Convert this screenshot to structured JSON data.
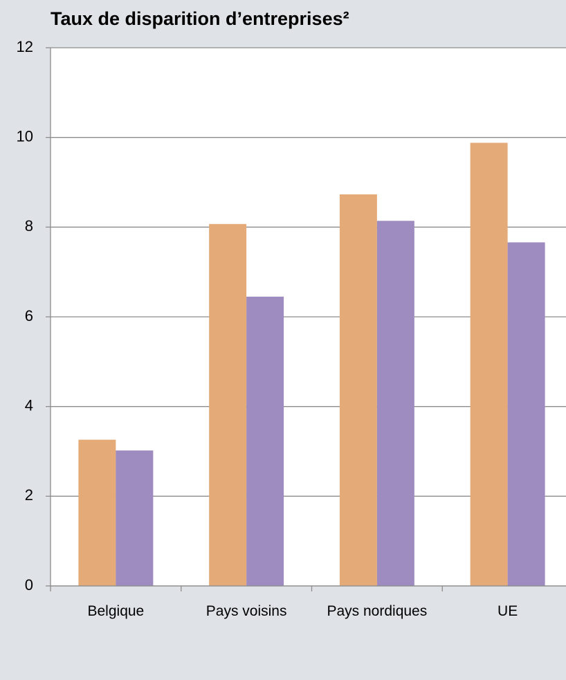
{
  "chart_data": {
    "type": "bar",
    "title": "Taux de disparition d’entreprises²",
    "categories": [
      "Belgique",
      "Pays voisins",
      "Pays nordiques",
      "UE"
    ],
    "series": [
      {
        "color": "#e4ab78",
        "values": [
          3.26,
          8.07,
          8.73,
          9.88
        ]
      },
      {
        "color": "#9e8bbf",
        "values": [
          3.02,
          6.45,
          8.14,
          7.66
        ]
      }
    ],
    "ylim": [
      0,
      12
    ],
    "yticks": [
      0,
      2,
      4,
      6,
      8,
      10,
      12
    ],
    "grid": true
  }
}
